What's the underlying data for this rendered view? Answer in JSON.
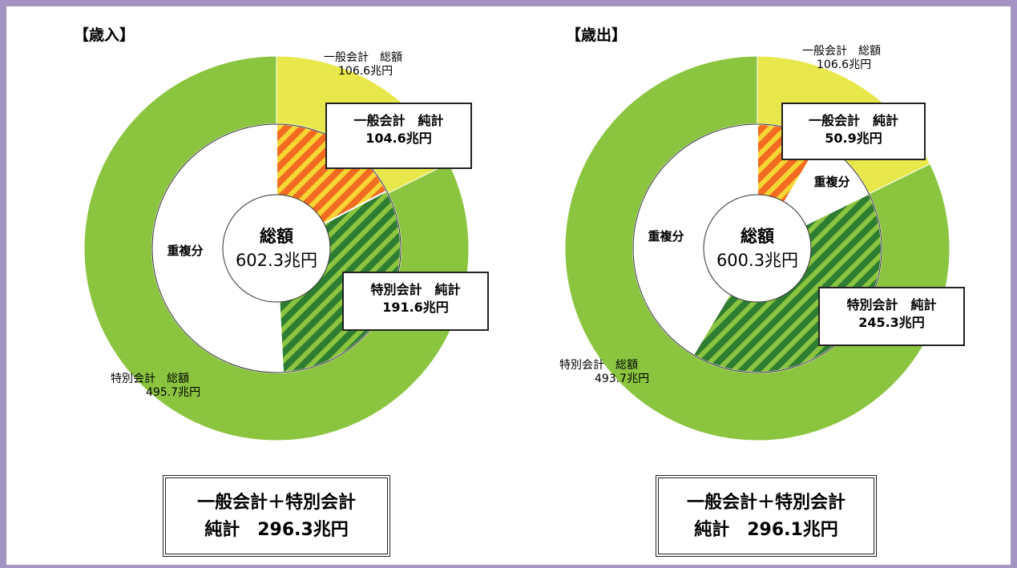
{
  "colors": {
    "general_total": "#e8e84c",
    "special_total": "#8bc540",
    "overlap": "#ffffff",
    "general_net_stripe_a": "#f26b21",
    "general_net_stripe_b": "#f5d634",
    "special_net_stripe_a": "#2e7d32",
    "special_net_stripe_b": "#8bc540",
    "frame_background": "#a394c4"
  },
  "chart_data": [
    {
      "type": "pie",
      "title": "【歳入】",
      "center_label": "総額",
      "center_value": "602.3兆円",
      "total": 602.3,
      "outer_ring": [
        {
          "name": "一般会計　総額",
          "value": 106.6,
          "label_value": "106.6兆円"
        },
        {
          "name": "特別会計　総額",
          "value": 495.7,
          "label_value": "495.7兆円"
        }
      ],
      "inner_ring": [
        {
          "name": "一般会計　純計",
          "value": 104.6,
          "label_value": "104.6兆円"
        },
        {
          "name": "特別会計　純計",
          "value": 191.6,
          "label_value": "191.6兆円"
        },
        {
          "name": "重複分",
          "value": 306.1
        }
      ],
      "summary_line1": "一般会計＋特別会計",
      "summary_line2": "純計　296.3兆円"
    },
    {
      "type": "pie",
      "title": "【歳出】",
      "center_label": "総額",
      "center_value": "600.3兆円",
      "total": 600.3,
      "outer_ring": [
        {
          "name": "一般会計　総額",
          "value": 106.6,
          "label_value": "106.6兆円"
        },
        {
          "name": "特別会計　総額",
          "value": 493.7,
          "label_value": "493.7兆円"
        }
      ],
      "inner_ring": [
        {
          "name": "一般会計　純計",
          "value": 50.9,
          "label_value": "50.9兆円"
        },
        {
          "name": "重複分",
          "value": 55.7
        },
        {
          "name": "特別会計　純計",
          "value": 245.3,
          "label_value": "245.3兆円"
        },
        {
          "name": "重複分",
          "value": 248.4
        }
      ],
      "summary_line1": "一般会計＋特別会計",
      "summary_line2": "純計　296.1兆円"
    }
  ]
}
